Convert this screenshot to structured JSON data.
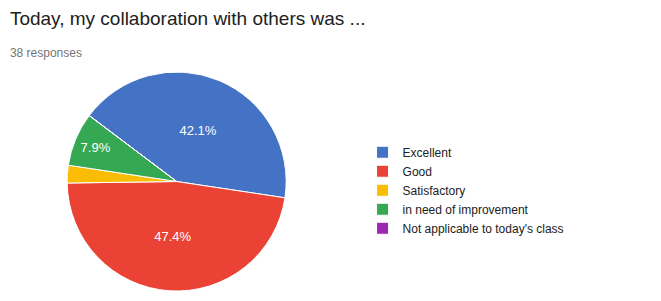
{
  "chart_data": {
    "type": "pie",
    "title": "Today, my collaboration with others was ...",
    "subtitle": "38 responses",
    "categories": [
      "Excellent",
      "Good",
      "Satisfactory",
      "in need of improvement",
      "Not applicable to today's class"
    ],
    "values": [
      42.1,
      47.4,
      2.6,
      7.9,
      0.0
    ],
    "colors": [
      "#4472C4",
      "#EA4335",
      "#FBBC04",
      "#34A853",
      "#9C27B0"
    ],
    "data_labels": true,
    "value_labels": [
      "42.1%",
      "47.4%",
      null,
      "7.9%",
      null
    ],
    "legend": "right"
  }
}
